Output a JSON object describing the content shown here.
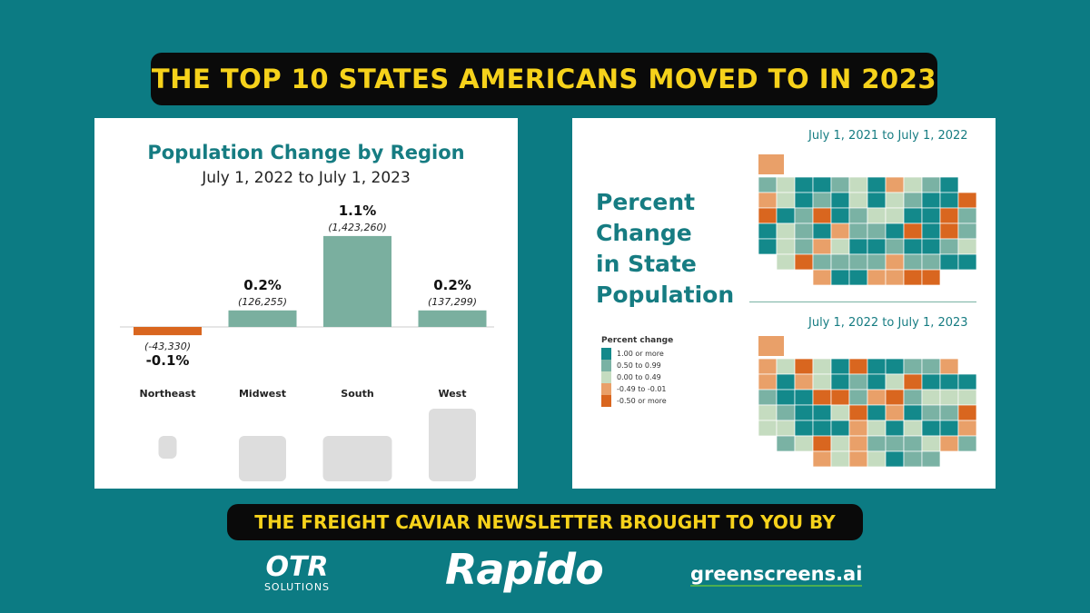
{
  "header": {
    "title": "THE TOP 10 STATES AMERICANS MOVED TO IN 2023"
  },
  "footer": {
    "banner": "THE FREIGHT CAVIAR NEWSLETTER BROUGHT TO YOU BY",
    "sponsors": [
      {
        "name": "OTR",
        "sub": "SOLUTIONS"
      },
      {
        "name": "Rapido"
      },
      {
        "name": "greenscreens.ai"
      }
    ]
  },
  "chart_data": {
    "type": "bar",
    "title": "Population Change by Region",
    "subtitle": "July 1, 2022 to July 1, 2023",
    "categories": [
      "Northeast",
      "Midwest",
      "South",
      "West"
    ],
    "values": [
      -0.1,
      0.2,
      1.1,
      0.2
    ],
    "value_labels": [
      "-0.1%",
      "0.2%",
      "1.1%",
      "0.2%"
    ],
    "count_labels": [
      "(-43,330)",
      "(126,255)",
      "(1,423,260)",
      "(137,299)"
    ],
    "colors": {
      "positive": "#7aaf9f",
      "negative": "#d9661f"
    }
  },
  "map": {
    "title_lines": [
      "Percent",
      "Change",
      "in State",
      "Population"
    ],
    "period_1": "July 1, 2021 to July 1, 2022",
    "period_2": "July 1, 2022 to July 1, 2023",
    "legend": {
      "title": "Percent change",
      "items": [
        {
          "label": "1.00 or more",
          "color": "#13898b"
        },
        {
          "label": "0.50 to 0.99",
          "color": "#7ab2a4"
        },
        {
          "label": "0.00 to 0.49",
          "color": "#c5dcc0"
        },
        {
          "label": "-0.49 to -0.01",
          "color": "#e9a069"
        },
        {
          "label": "-0.50 or more",
          "color": "#d9661f"
        }
      ]
    }
  }
}
